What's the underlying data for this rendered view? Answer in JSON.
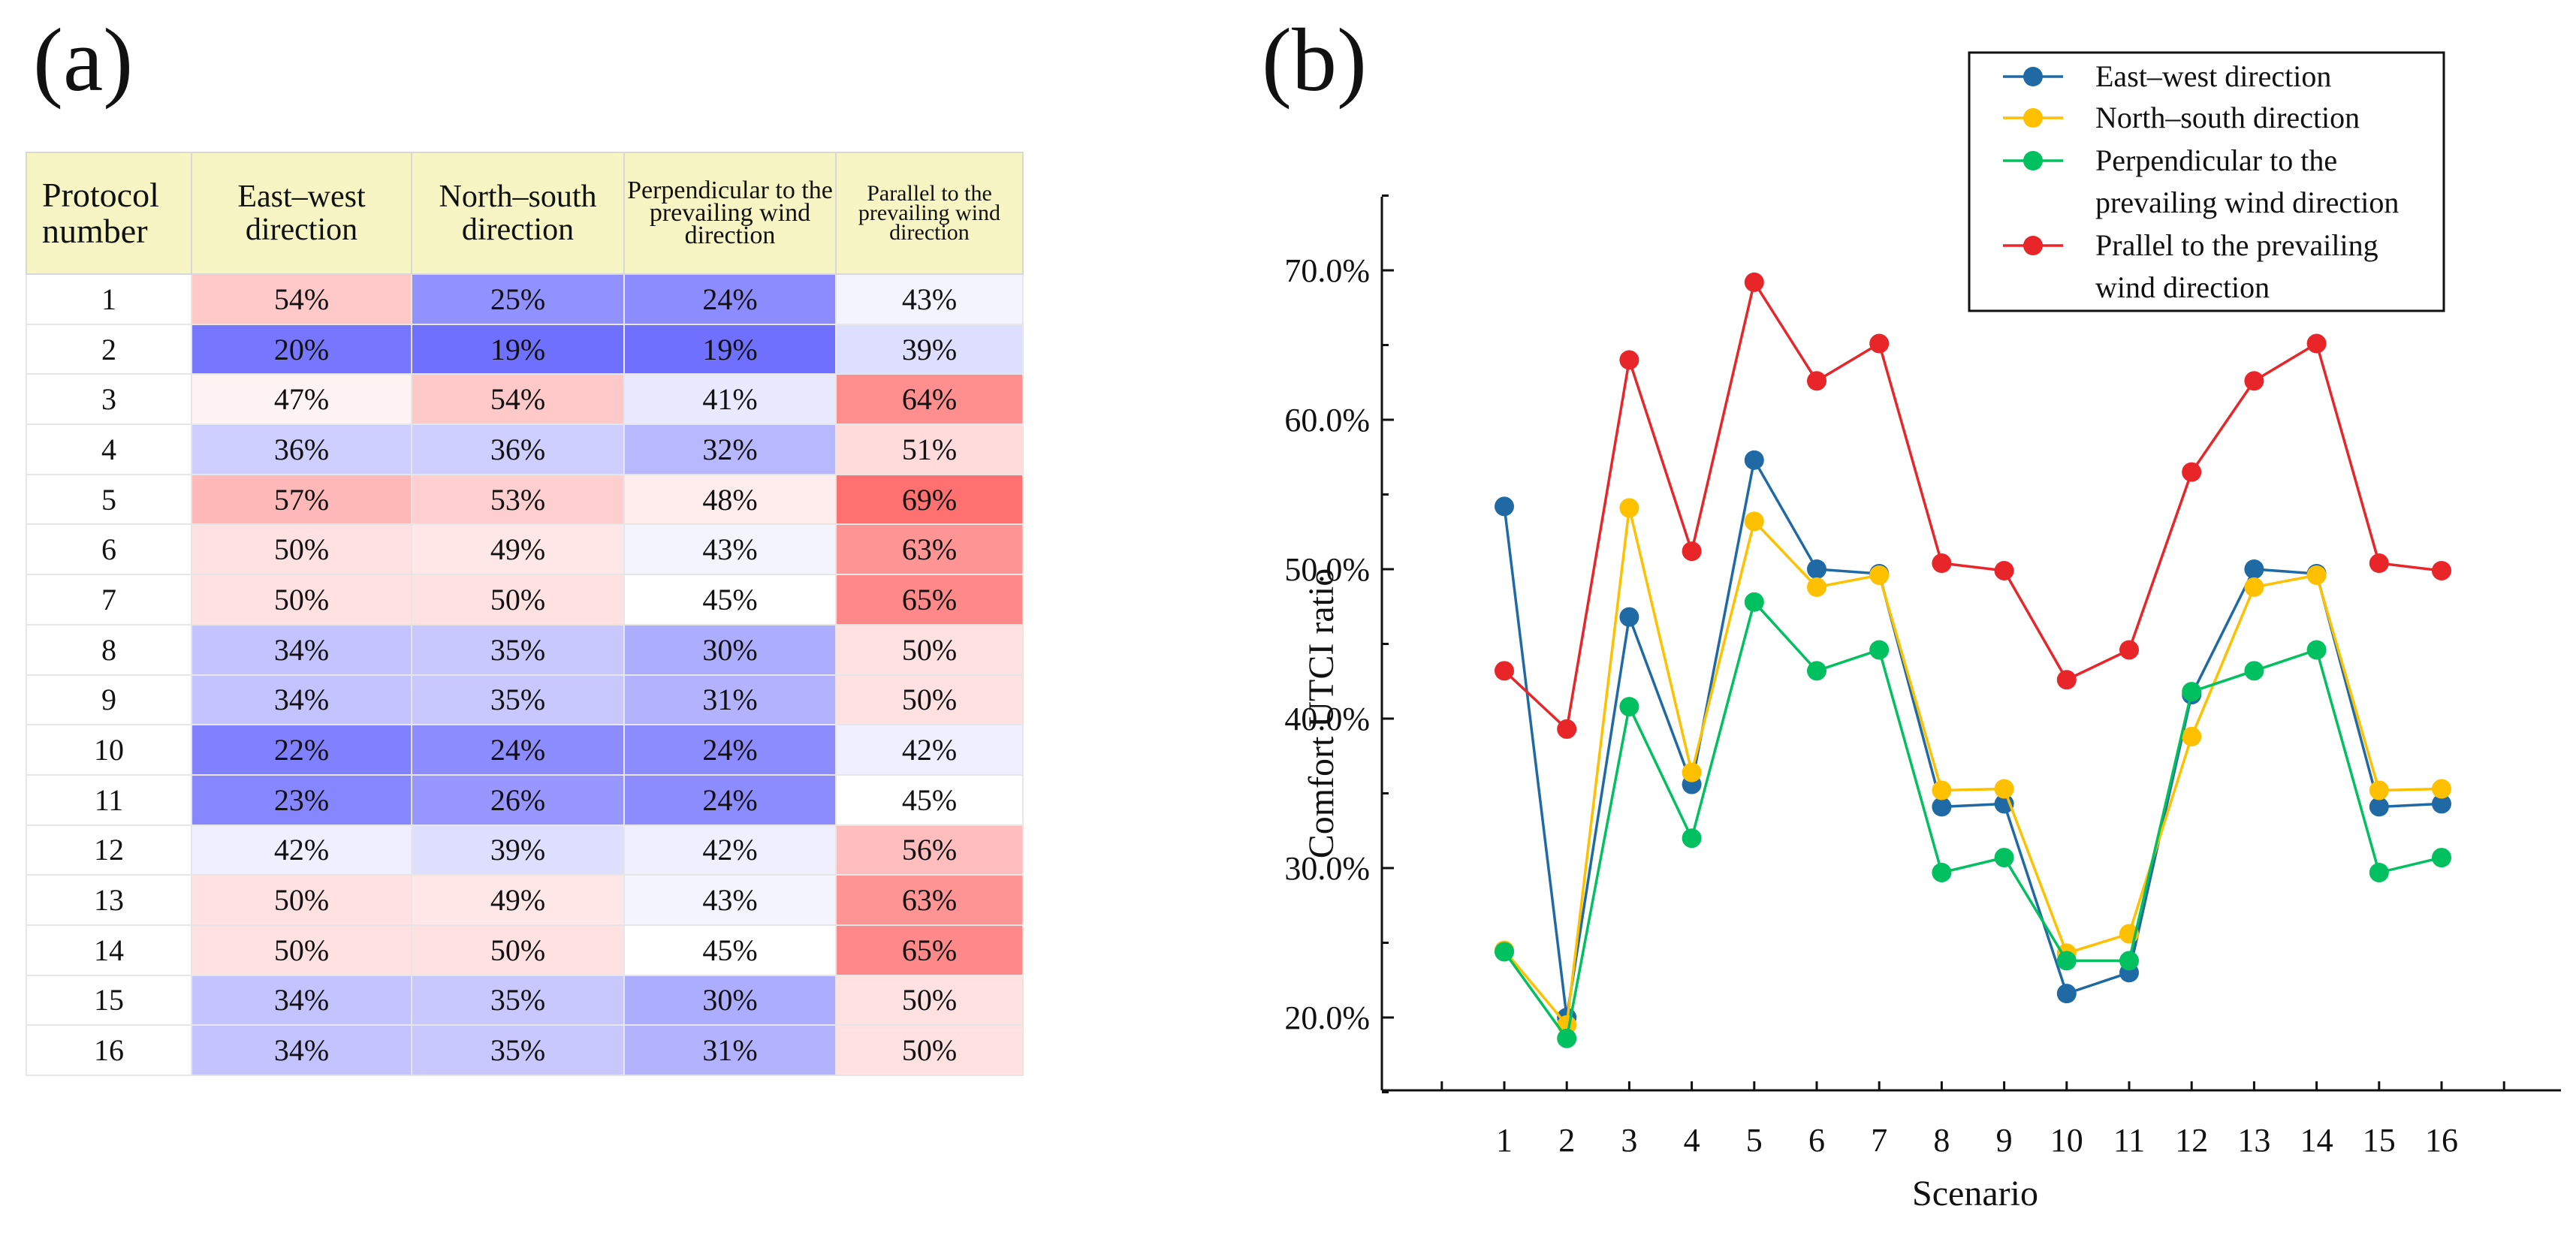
{
  "panels": {
    "a_label": "(a)",
    "b_label": "(b)"
  },
  "colors": {
    "header_bg": "#f7f5c4",
    "east_west": "#1f6aa5",
    "north_south": "#ffc000",
    "perpendicular": "#00c060",
    "parallel": "#e8262a"
  },
  "chart_data": [
    {
      "type": "table",
      "columns": [
        "Protocol number",
        "East–west direction",
        "North–south direction",
        "Perpendicular to the prevailing wind direction",
        "Parallel to the prevailing wind direction"
      ],
      "rows": [
        [
          "1",
          "54%",
          "25%",
          "24%",
          "43%"
        ],
        [
          "2",
          "20%",
          "19%",
          "19%",
          "39%"
        ],
        [
          "3",
          "47%",
          "54%",
          "41%",
          "64%"
        ],
        [
          "4",
          "36%",
          "36%",
          "32%",
          "51%"
        ],
        [
          "5",
          "57%",
          "53%",
          "48%",
          "69%"
        ],
        [
          "6",
          "50%",
          "49%",
          "43%",
          "63%"
        ],
        [
          "7",
          "50%",
          "50%",
          "45%",
          "65%"
        ],
        [
          "8",
          "34%",
          "35%",
          "30%",
          "50%"
        ],
        [
          "9",
          "34%",
          "35%",
          "31%",
          "50%"
        ],
        [
          "10",
          "22%",
          "24%",
          "24%",
          "42%"
        ],
        [
          "11",
          "23%",
          "26%",
          "24%",
          "45%"
        ],
        [
          "12",
          "42%",
          "39%",
          "42%",
          "56%"
        ],
        [
          "13",
          "50%",
          "49%",
          "43%",
          "63%"
        ],
        [
          "14",
          "50%",
          "50%",
          "45%",
          "65%"
        ],
        [
          "15",
          "34%",
          "35%",
          "30%",
          "50%"
        ],
        [
          "16",
          "34%",
          "35%",
          "31%",
          "50%"
        ]
      ],
      "color_scale": {
        "low": "#7070ff",
        "mid": "#ffffff",
        "high": "#ff7070",
        "low_value": 19,
        "mid_value": 45,
        "high_value": 69
      }
    },
    {
      "type": "line",
      "x": [
        1,
        2,
        3,
        4,
        5,
        6,
        7,
        8,
        9,
        10,
        11,
        12,
        13,
        14,
        15,
        16
      ],
      "xlabel": "Scenario",
      "ylabel": "Comfort UTCI ratio",
      "ylim": [
        15,
        75
      ],
      "yticks": [
        20,
        30,
        40,
        50,
        60,
        70
      ],
      "ytick_labels": [
        "20.0%",
        "30.0%",
        "40.0%",
        "50.0%",
        "60.0%",
        "70.0%"
      ],
      "legend_position": "top-right",
      "series": [
        {
          "name": "East–west direction",
          "color": "#1f6aa5",
          "values": [
            54.2,
            20.0,
            46.8,
            35.6,
            57.3,
            50.0,
            49.7,
            34.1,
            34.3,
            21.6,
            23.0,
            41.6,
            50.0,
            49.7,
            34.1,
            34.3
          ]
        },
        {
          "name": "North–south direction",
          "color": "#ffc000",
          "values": [
            24.5,
            19.5,
            54.1,
            36.4,
            53.2,
            48.8,
            49.6,
            35.2,
            35.3,
            24.3,
            25.6,
            38.8,
            48.8,
            49.6,
            35.2,
            35.3
          ]
        },
        {
          "name": "Perpendicular to the prevailing wind direction",
          "color": "#00c060",
          "values": [
            24.4,
            18.6,
            40.8,
            32.0,
            47.8,
            43.2,
            44.6,
            29.7,
            30.7,
            23.8,
            23.8,
            41.8,
            43.2,
            44.6,
            29.7,
            30.7
          ]
        },
        {
          "name": "Prallel to the prevailing wind direction",
          "color": "#e8262a",
          "values": [
            43.2,
            39.3,
            64.0,
            51.2,
            69.2,
            62.6,
            65.1,
            50.4,
            49.9,
            42.6,
            44.6,
            56.5,
            62.6,
            65.1,
            50.4,
            49.9
          ]
        }
      ]
    }
  ]
}
